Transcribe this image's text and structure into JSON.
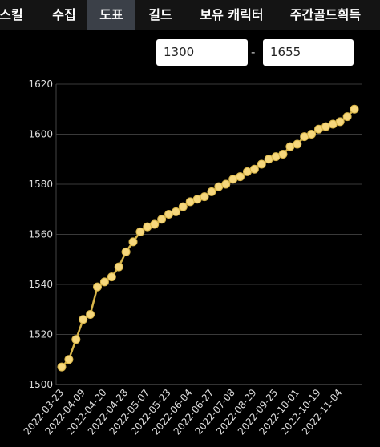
{
  "tabs": [
    "스킬",
    "수집",
    "도표",
    "길드",
    "보유 캐릭터",
    "주간골드획득"
  ],
  "range": {
    "from": "1300",
    "separator": "-",
    "to": "1655"
  },
  "chart_data": {
    "type": "line",
    "color": "#d9b64a",
    "marker_color": "#f6d77c",
    "grid": true,
    "categories": [
      "2022-03-23",
      null,
      null,
      "2022-04-09",
      null,
      null,
      "2022-04-20",
      null,
      null,
      "2022-04-28",
      null,
      null,
      "2022-05-07",
      null,
      null,
      "2022-05-23",
      null,
      null,
      "2022-06-04",
      null,
      null,
      "2022-06-27",
      null,
      null,
      "2022-07-08",
      null,
      null,
      "2022-08-29",
      null,
      null,
      "2022-09-25",
      null,
      null,
      "2022-10-01",
      null,
      null,
      "2022-10-19",
      null,
      null,
      "2022-11-04",
      null,
      null
    ],
    "values": [
      1507,
      1510,
      1518,
      1526,
      1528,
      1539,
      1541,
      1543,
      1547,
      1553,
      1557,
      1561,
      1563,
      1564,
      1566,
      1568,
      1569,
      1571,
      1573,
      1574,
      1575,
      1577,
      1579,
      1580,
      1582,
      1583,
      1585,
      1586,
      1588,
      1590,
      1591,
      1592,
      1595,
      1596,
      1599,
      1600,
      1602,
      1603,
      1604,
      1605,
      1607,
      1610
    ],
    "ylim": [
      1500,
      1620
    ],
    "yticks": [
      1500,
      1520,
      1540,
      1560,
      1580,
      1600,
      1620
    ]
  }
}
